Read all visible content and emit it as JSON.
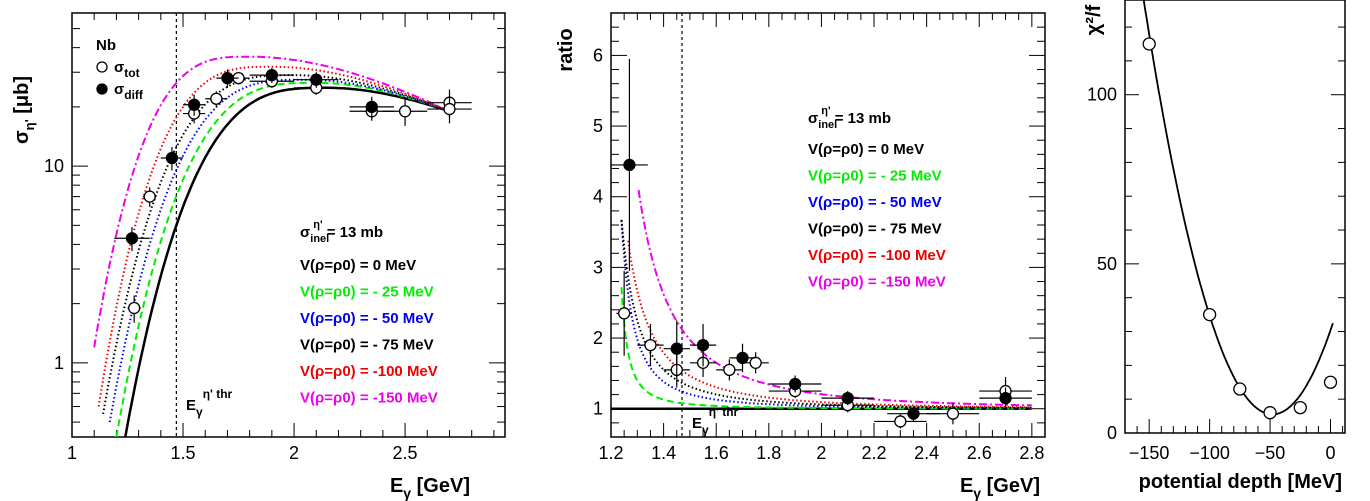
{
  "colors": {
    "v0": "#000000",
    "v25": "#00ee00",
    "v50": "#0000ee",
    "v75": "#000000",
    "v100": "#ee0000",
    "v150": "#ee00ee"
  },
  "chart_data": [
    {
      "type": "scatter",
      "yscale": "log",
      "xlabel_main": "E",
      "xlabel_sub": "γ",
      "xlabel_unit": "[GeV]",
      "ylabel_main": "σ",
      "ylabel_sub": "η'",
      "ylabel_unit": "[μb]",
      "xlim": [
        1.0,
        2.95
      ],
      "ylim": [
        0.42,
        60
      ],
      "xticks": [
        "1",
        "1.5",
        "2",
        "2.5"
      ],
      "xtick_values": [
        1,
        1.5,
        2,
        2.5
      ],
      "yticks": [
        "1",
        "10"
      ],
      "ytick_values": [
        1,
        10
      ],
      "threshold_x": 1.47,
      "threshold_label_main": "E",
      "threshold_label_sub": "γ",
      "threshold_label_sup": "η' thr",
      "target_label": "Nb",
      "legend_markers": [
        {
          "label_main": "σ",
          "label_sub": "tot",
          "filled": false
        },
        {
          "label_main": "σ",
          "label_sub": "diff",
          "filled": true
        }
      ],
      "sigma_label": {
        "main": "σ",
        "sub": "inel",
        "sup": "η'",
        "rest": " = 13 mb"
      },
      "legend": [
        {
          "text": "V(ρ=ρ0) =    0 MeV",
          "color_key": "v0"
        },
        {
          "text": "V(ρ=ρ0) = - 25 MeV",
          "color_key": "v25"
        },
        {
          "text": "V(ρ=ρ0) = - 50 MeV",
          "color_key": "v50"
        },
        {
          "text": "V(ρ=ρ0) = - 75 MeV",
          "color_key": "v75"
        },
        {
          "text": "V(ρ=ρ0) = -100 MeV",
          "color_key": "v100"
        },
        {
          "text": "V(ρ=ρ0) = -150 MeV",
          "color_key": "v150"
        }
      ],
      "series": [
        {
          "name": "σ_tot",
          "filled": false,
          "x": [
            1.28,
            1.35,
            1.55,
            1.65,
            1.75,
            1.9,
            2.1,
            2.35,
            2.5,
            2.7,
            2.7
          ],
          "y": [
            1.9,
            7.0,
            18.5,
            22.0,
            28.0,
            27.0,
            25.0,
            19.0,
            19.0,
            21.0,
            19.5
          ],
          "xerr": [
            0.03,
            0.03,
            0.05,
            0.05,
            0.05,
            0.1,
            0.1,
            0.1,
            0.1,
            0.1,
            0.1
          ],
          "yerr": [
            0.3,
            0.8,
            2.0,
            2.0,
            2.0,
            2.0,
            2.0,
            2.0,
            3.0,
            3.5,
            3.0
          ]
        },
        {
          "name": "σ_diff",
          "filled": true,
          "x": [
            1.27,
            1.45,
            1.55,
            1.7,
            1.9,
            2.1,
            2.35
          ],
          "y": [
            4.3,
            11.0,
            20.5,
            28.0,
            29.0,
            27.5,
            20.0
          ],
          "xerr": [
            0.08,
            0.05,
            0.05,
            0.05,
            0.1,
            0.1,
            0.1
          ],
          "yerr": [
            0.6,
            1.5,
            2.5,
            3.0,
            2.5,
            2.5,
            2.5
          ]
        }
      ],
      "curves": [
        {
          "key": "v0",
          "style": "solid",
          "start": 1.24,
          "low": 0.42,
          "peak": 25.0,
          "peakx": 2.15
        },
        {
          "key": "v25",
          "style": "dash",
          "start": 1.2,
          "low": 0.42,
          "peak": 26.5,
          "peakx": 2.1
        },
        {
          "key": "v50",
          "style": "dot",
          "start": 1.17,
          "low": 0.5,
          "peak": 27.5,
          "peakx": 2.05
        },
        {
          "key": "v75",
          "style": "dot",
          "start": 1.14,
          "low": 0.55,
          "peak": 29.0,
          "peakx": 2.0
        },
        {
          "key": "v100",
          "style": "dot",
          "start": 1.12,
          "low": 0.6,
          "peak": 32.0,
          "peakx": 1.9
        },
        {
          "key": "v150",
          "style": "dashdot",
          "start": 1.1,
          "low": 1.2,
          "peak": 36.0,
          "peakx": 1.8
        }
      ]
    },
    {
      "type": "scatter",
      "ylabel": "ratio",
      "xlabel_main": "E",
      "xlabel_sub": "γ",
      "xlabel_unit": "[GeV]",
      "xlim": [
        1.2,
        2.85
      ],
      "ylim": [
        0.6,
        6.6
      ],
      "xticks": [
        "1.2",
        "1.4",
        "1.6",
        "1.8",
        "2",
        "2.2",
        "2.4",
        "2.6",
        "2.8"
      ],
      "xtick_values": [
        1.2,
        1.4,
        1.6,
        1.8,
        2.0,
        2.2,
        2.4,
        2.6,
        2.8
      ],
      "yticks": [
        "1",
        "2",
        "3",
        "4",
        "5",
        "6"
      ],
      "ytick_values": [
        1,
        2,
        3,
        4,
        5,
        6
      ],
      "threshold_x": 1.47,
      "threshold_label_main": "E",
      "threshold_label_sub": "γ",
      "threshold_label_sup": "η' thr",
      "sigma_label": {
        "main": "σ",
        "sub": "inel",
        "sup": "η'",
        "rest": " = 13 mb"
      },
      "legend": [
        {
          "text": "V(ρ=ρ0) =    0 MeV",
          "color_key": "v0"
        },
        {
          "text": "V(ρ=ρ0) = - 25 MeV",
          "color_key": "v25"
        },
        {
          "text": "V(ρ=ρ0) = - 50 MeV",
          "color_key": "v50"
        },
        {
          "text": "V(ρ=ρ0) = - 75 MeV",
          "color_key": "v75"
        },
        {
          "text": "V(ρ=ρ0) = -100 MeV",
          "color_key": "v100"
        },
        {
          "text": "V(ρ=ρ0) = -150 MeV",
          "color_key": "v150"
        }
      ],
      "series": [
        {
          "name": "σ_tot",
          "filled": false,
          "x": [
            1.25,
            1.35,
            1.45,
            1.55,
            1.65,
            1.75,
            1.9,
            2.1,
            2.3,
            2.5,
            2.7
          ],
          "y": [
            2.35,
            1.9,
            1.55,
            1.65,
            1.55,
            1.65,
            1.25,
            1.05,
            0.82,
            0.93,
            1.25
          ],
          "xerr": [
            0.03,
            0.05,
            0.05,
            0.05,
            0.05,
            0.05,
            0.1,
            0.1,
            0.1,
            0.1,
            0.1
          ],
          "yerr": [
            0.6,
            0.3,
            0.25,
            0.2,
            0.15,
            0.15,
            0.1,
            0.1,
            0.1,
            0.15,
            0.2
          ]
        },
        {
          "name": "σ_diff",
          "filled": true,
          "x": [
            1.27,
            1.45,
            1.55,
            1.7,
            1.9,
            2.1,
            2.35,
            2.7
          ],
          "y": [
            4.45,
            1.85,
            1.9,
            1.72,
            1.35,
            1.15,
            0.93,
            1.15
          ],
          "xerr": [
            0.07,
            0.05,
            0.05,
            0.05,
            0.1,
            0.1,
            0.1,
            0.1
          ],
          "yerr": [
            1.5,
            0.4,
            0.3,
            0.2,
            0.12,
            0.1,
            0.1,
            0.15
          ]
        }
      ],
      "curves": [
        {
          "key": "v0",
          "style": "solid",
          "c": 0.0,
          "x0": 1.2,
          "start": 1.2
        },
        {
          "key": "v25",
          "style": "dash",
          "c": 0.012,
          "x0": 1.2,
          "start": 1.24
        },
        {
          "key": "v50",
          "style": "dot",
          "c": 0.045,
          "x0": 1.17,
          "start": 1.24
        },
        {
          "key": "v75",
          "style": "dot",
          "c": 0.08,
          "x0": 1.14,
          "start": 1.24
        },
        {
          "key": "v100",
          "style": "dot",
          "c": 0.13,
          "x0": 1.12,
          "start": 1.265
        },
        {
          "key": "v150",
          "style": "dashdot",
          "c": 0.3,
          "x0": 1.1,
          "start": 1.305
        }
      ]
    },
    {
      "type": "scatter",
      "ylabel": "χ²/f",
      "xlabel": "potential depth [MeV]",
      "xlim": [
        -170,
        12
      ],
      "ylim": [
        0,
        128
      ],
      "xticks": [
        "−150",
        "−100",
        "−50",
        "0"
      ],
      "xtick_values": [
        -150,
        -100,
        -50,
        0
      ],
      "yticks": [
        "0",
        "50",
        "100"
      ],
      "ytick_values": [
        0,
        50,
        100
      ],
      "points": {
        "x": [
          -150,
          -100,
          -75,
          -50,
          -25,
          0
        ],
        "y": [
          115,
          35,
          13,
          6,
          7.5,
          15
        ]
      },
      "fit_curve": {
        "vertex_x": -48,
        "vertex_y": 5.5,
        "a": 0.0108,
        "x_from": -155,
        "x_to": 2
      }
    }
  ]
}
